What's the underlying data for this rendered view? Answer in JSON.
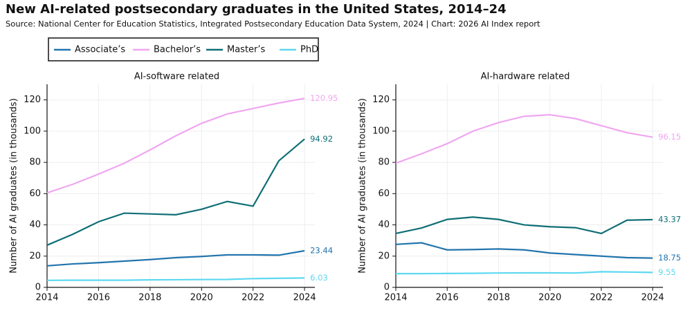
{
  "title": "New AI-related postsecondary graduates in the United States, 2014–24",
  "subtitle": "Source: National Center for Education Statistics, Integrated Postsecondary Education Data System, 2024 | Chart: 2026 AI Index report",
  "chart_data": [
    {
      "type": "line",
      "title": "AI-software related",
      "ylabel": "Number of AI graduates (in thousands)",
      "x": [
        2014,
        2015,
        2016,
        2017,
        2018,
        2019,
        2020,
        2021,
        2022,
        2023,
        2024
      ],
      "xlim": [
        2014,
        2024.4
      ],
      "xticks": [
        2014,
        2016,
        2018,
        2020,
        2022,
        2024
      ],
      "ylim": [
        0,
        130
      ],
      "yticks": [
        0,
        20,
        40,
        60,
        80,
        100,
        120
      ],
      "grid": true,
      "series": [
        {
          "name": "Associate’s",
          "color": "#2174ad",
          "values": [
            13.8,
            15,
            15.8,
            16.8,
            17.8,
            19,
            19.8,
            20.8,
            20.8,
            20.6,
            23.44
          ]
        },
        {
          "name": "Bachelor’s",
          "color": "#f0a6f0",
          "values": [
            60.5,
            66,
            72.5,
            79.5,
            88,
            97,
            105,
            111,
            114.5,
            118,
            120.95
          ]
        },
        {
          "name": "Master’s",
          "color": "#0e6e75",
          "values": [
            27,
            34,
            42,
            47.5,
            47,
            46.5,
            50,
            55,
            52,
            81,
            94.92
          ]
        },
        {
          "name": "PhD",
          "color": "#5cd8f0",
          "values": [
            4.5,
            4.6,
            4.6,
            4.6,
            4.8,
            4.9,
            5,
            5.1,
            5.6,
            5.8,
            6.03
          ]
        }
      ]
    },
    {
      "type": "line",
      "title": "AI-hardware related",
      "ylabel": "Number of AI graduates (in thousands)",
      "x": [
        2014,
        2015,
        2016,
        2017,
        2018,
        2019,
        2020,
        2021,
        2022,
        2023,
        2024
      ],
      "xlim": [
        2014,
        2024.4
      ],
      "xticks": [
        2014,
        2016,
        2018,
        2020,
        2022,
        2024
      ],
      "ylim": [
        0,
        130
      ],
      "yticks": [
        0,
        20,
        40,
        60,
        80,
        100,
        120
      ],
      "grid": true,
      "series": [
        {
          "name": "Associate’s",
          "color": "#2174ad",
          "values": [
            27.5,
            28.5,
            24,
            24.2,
            24.6,
            24,
            22,
            21,
            20,
            19,
            18.75
          ]
        },
        {
          "name": "Bachelor’s",
          "color": "#f0a6f0",
          "values": [
            79.5,
            85.5,
            92,
            100,
            105.5,
            109.5,
            110.5,
            108,
            103.5,
            99,
            96.15
          ]
        },
        {
          "name": "Master’s",
          "color": "#0e6e75",
          "values": [
            34.5,
            38,
            43.5,
            45,
            43.5,
            40,
            38.8,
            38.2,
            34.5,
            43,
            43.37
          ]
        },
        {
          "name": "PhD",
          "color": "#5cd8f0",
          "values": [
            8.8,
            8.8,
            8.9,
            9,
            9.2,
            9.3,
            9.3,
            9.2,
            10,
            9.8,
            9.55
          ]
        }
      ]
    }
  ]
}
